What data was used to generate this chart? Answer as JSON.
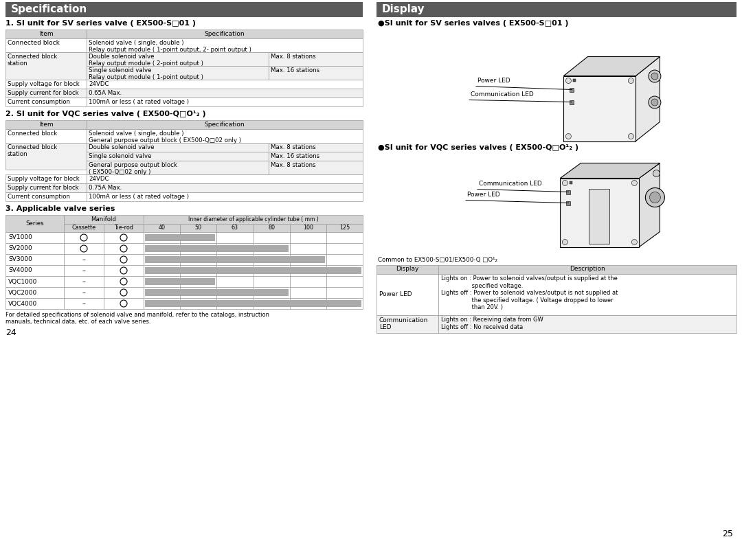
{
  "page_bg": "#ffffff",
  "header_bg": "#5a5a5a",
  "header_text_color": "#ffffff",
  "table_header_bg": "#d4d4d4",
  "table_border_color": "#999999",
  "left_title": "Specification",
  "right_title": "Display",
  "section1_title": "1. SI unit for SV series valve ( EX500-S□01 )",
  "section2_title": "2. SI unit for VQC series valve ( EX500-Q□O¹₂ )",
  "section3_title": "3. Applicable valve series",
  "display_sv_title": "●SI unit for SV series valves ( EX500-S□01 )",
  "display_vqc_title": "●SI unit for VQC series valves ( EX500-Q□O¹₂ )",
  "footnote": "For detailed specifications of solenoid valve and manifold, refer to the catalogs, instruction\nmanuals, technical data, etc. of each valve series.",
  "common_note": "Common to EX500-S□01/EX500-Q □O¹₂",
  "page_numbers": [
    "24",
    "25"
  ],
  "valve_series": [
    "SV1000",
    "SV2000",
    "SV3000",
    "SV4000",
    "VQC1000",
    "VQC2000",
    "VQC4000"
  ],
  "cassette": [
    true,
    true,
    false,
    false,
    false,
    false,
    false
  ],
  "tierod": [
    true,
    true,
    true,
    true,
    true,
    true,
    true
  ],
  "bar_ranges": [
    [
      0,
      1
    ],
    [
      0,
      3
    ],
    [
      0,
      4
    ],
    [
      0,
      5
    ],
    [
      0,
      1
    ],
    [
      0,
      3
    ],
    [
      0,
      5
    ]
  ],
  "cols_mm": [
    "40",
    "50",
    "63",
    "80",
    "100",
    "125"
  ]
}
